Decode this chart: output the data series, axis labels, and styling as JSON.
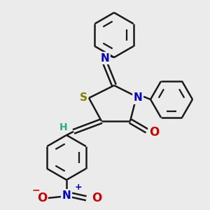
{
  "bg_color": "#ebebeb",
  "line_color": "#1a1a1a",
  "bond_lw": 1.8,
  "atoms": {
    "S": {
      "color": "#808000",
      "fontsize": 11
    },
    "N": {
      "color": "#0000cc",
      "fontsize": 11
    },
    "O": {
      "color": "#cc0000",
      "fontsize": 11
    },
    "H": {
      "color": "#2aaa88",
      "fontsize": 10
    }
  },
  "figsize": [
    3.0,
    3.0
  ],
  "dpi": 100
}
